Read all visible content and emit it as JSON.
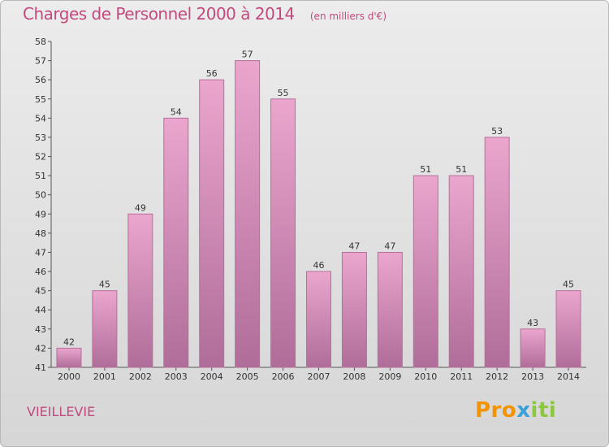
{
  "title": "Charges de Personnel 2000 à 2014",
  "subtitle": "(en milliers d'€)",
  "commune": "VIEILLEVIE",
  "brand": {
    "p1": "Pro",
    "p2": "x",
    "p3": "iti"
  },
  "colors": {
    "title": "#c24a7e",
    "bar_top": "#eaa6cd",
    "bar_bottom": "#b06d99",
    "bar_edge": "#b76f9b"
  },
  "chart_data": {
    "type": "bar",
    "title": "Charges de Personnel 2000 à 2014",
    "subtitle": "(en milliers d'€)",
    "categories": [
      "2000",
      "2001",
      "2002",
      "2003",
      "2004",
      "2005",
      "2006",
      "2007",
      "2008",
      "2009",
      "2010",
      "2011",
      "2012",
      "2013",
      "2014"
    ],
    "values": [
      42,
      45,
      49,
      54,
      56,
      57,
      55,
      46,
      47,
      47,
      51,
      51,
      53,
      43,
      45
    ],
    "ylim": [
      41,
      58
    ],
    "yticks": [
      41,
      42,
      43,
      44,
      45,
      46,
      47,
      48,
      49,
      50,
      51,
      52,
      53,
      54,
      55,
      56,
      57,
      58
    ],
    "grid": false,
    "legend": "none"
  }
}
